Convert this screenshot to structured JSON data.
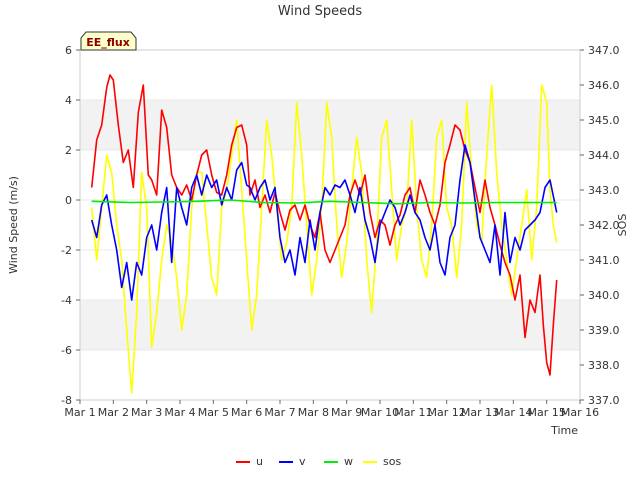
{
  "chart_data": {
    "type": "line",
    "title": "Wind Speeds",
    "badge": "EE_flux",
    "xlabel": "Time",
    "ylabel_left": "Wind Speed (m/s)",
    "ylabel_right": "SOS",
    "xlim": [
      1,
      16
    ],
    "ylim_left": [
      -8,
      6
    ],
    "ylim_right": [
      337.0,
      347.0
    ],
    "x_ticks": [
      {
        "value": 1,
        "label": "Mar 1"
      },
      {
        "value": 2,
        "label": "Mar 2"
      },
      {
        "value": 3,
        "label": "Mar 3"
      },
      {
        "value": 4,
        "label": "Mar 4"
      },
      {
        "value": 5,
        "label": "Mar 5"
      },
      {
        "value": 6,
        "label": "Mar 6"
      },
      {
        "value": 7,
        "label": "Mar 7"
      },
      {
        "value": 8,
        "label": "Mar 8"
      },
      {
        "value": 9,
        "label": "Mar 9"
      },
      {
        "value": 10,
        "label": "Mar 10"
      },
      {
        "value": 11,
        "label": "Mar 11"
      },
      {
        "value": 12,
        "label": "Mar 12"
      },
      {
        "value": 13,
        "label": "Mar 13"
      },
      {
        "value": 14,
        "label": "Mar 14"
      },
      {
        "value": 15,
        "label": "Mar 15"
      },
      {
        "value": 16,
        "label": "Mar 16"
      }
    ],
    "y_ticks_left": [
      {
        "value": -8,
        "label": "-8"
      },
      {
        "value": -6,
        "label": "-6"
      },
      {
        "value": -4,
        "label": "-4"
      },
      {
        "value": -2,
        "label": "-2"
      },
      {
        "value": 0,
        "label": "0"
      },
      {
        "value": 2,
        "label": "2"
      },
      {
        "value": 4,
        "label": "4"
      },
      {
        "value": 6,
        "label": "6"
      }
    ],
    "y_ticks_right": [
      {
        "value": 337,
        "label": "337.0"
      },
      {
        "value": 338,
        "label": "338.0"
      },
      {
        "value": 339,
        "label": "339.0"
      },
      {
        "value": 340,
        "label": "340.0"
      },
      {
        "value": 341,
        "label": "341.0"
      },
      {
        "value": 342,
        "label": "342.0"
      },
      {
        "value": 343,
        "label": "343.0"
      },
      {
        "value": 344,
        "label": "344.0"
      },
      {
        "value": 345,
        "label": "345.0"
      },
      {
        "value": 346,
        "label": "346.0"
      },
      {
        "value": 347,
        "label": "347.0"
      }
    ],
    "bands_left": [
      [
        -6,
        -4
      ],
      [
        2,
        4
      ]
    ],
    "series": [
      {
        "name": "u",
        "axis": "left",
        "color": "#ff0000",
        "x": [
          1.35,
          1.5,
          1.65,
          1.8,
          1.9,
          2.0,
          2.15,
          2.3,
          2.45,
          2.6,
          2.75,
          2.9,
          3.05,
          3.15,
          3.3,
          3.45,
          3.6,
          3.75,
          3.9,
          4.05,
          4.2,
          4.35,
          4.5,
          4.65,
          4.8,
          4.95,
          5.1,
          5.25,
          5.4,
          5.55,
          5.7,
          5.85,
          6.0,
          6.1,
          6.25,
          6.4,
          6.55,
          6.7,
          6.85,
          7.0,
          7.15,
          7.3,
          7.45,
          7.6,
          7.75,
          7.9,
          8.05,
          8.2,
          8.35,
          8.5,
          8.65,
          8.8,
          8.95,
          9.1,
          9.25,
          9.4,
          9.55,
          9.7,
          9.85,
          10.0,
          10.15,
          10.3,
          10.45,
          10.6,
          10.75,
          10.9,
          11.05,
          11.2,
          11.35,
          11.5,
          11.65,
          11.8,
          11.95,
          12.1,
          12.25,
          12.4,
          12.55,
          12.7,
          12.85,
          13.0,
          13.15,
          13.3,
          13.45,
          13.6,
          13.75,
          13.9,
          14.05,
          14.2,
          14.35,
          14.5,
          14.65,
          14.8,
          14.9,
          15.0,
          15.1,
          15.2,
          15.3
        ],
        "y": [
          0.5,
          2.4,
          3.0,
          4.5,
          5.0,
          4.8,
          3.0,
          1.5,
          2.0,
          0.5,
          3.5,
          4.6,
          1.0,
          0.8,
          0.2,
          3.6,
          2.9,
          1.0,
          0.5,
          0.2,
          0.6,
          0.0,
          1.0,
          1.8,
          2.0,
          1.0,
          0.3,
          0.2,
          1.0,
          2.2,
          2.9,
          3.0,
          2.2,
          0.2,
          0.8,
          -0.3,
          0.2,
          -0.5,
          0.3,
          -0.5,
          -1.2,
          -0.4,
          -0.2,
          -0.8,
          -0.2,
          -1.0,
          -1.5,
          -0.5,
          -2.0,
          -2.5,
          -2.0,
          -1.5,
          -1.0,
          0.2,
          0.8,
          0.2,
          1.0,
          -0.5,
          -1.5,
          -0.8,
          -1.0,
          -1.8,
          -1.0,
          -0.6,
          0.2,
          0.5,
          -0.5,
          0.8,
          0.2,
          -0.5,
          -1.0,
          -0.2,
          1.5,
          2.2,
          3.0,
          2.8,
          2.0,
          1.5,
          0.5,
          -0.5,
          0.8,
          -0.3,
          -1.0,
          -1.8,
          -2.5,
          -3.0,
          -4.0,
          -3.0,
          -5.5,
          -4.0,
          -4.5,
          -3.0,
          -5.0,
          -6.5,
          -7.0,
          -5.0,
          -3.2
        ]
      },
      {
        "name": "v",
        "axis": "left",
        "color": "#0000ff",
        "x": [
          1.35,
          1.5,
          1.65,
          1.8,
          1.95,
          2.1,
          2.25,
          2.4,
          2.55,
          2.7,
          2.85,
          3.0,
          3.15,
          3.3,
          3.45,
          3.6,
          3.75,
          3.9,
          4.05,
          4.2,
          4.35,
          4.5,
          4.65,
          4.8,
          4.95,
          5.1,
          5.25,
          5.4,
          5.55,
          5.7,
          5.85,
          6.0,
          6.1,
          6.25,
          6.4,
          6.55,
          6.7,
          6.85,
          7.0,
          7.15,
          7.3,
          7.45,
          7.6,
          7.75,
          7.9,
          8.05,
          8.2,
          8.35,
          8.5,
          8.65,
          8.8,
          8.95,
          9.1,
          9.25,
          9.4,
          9.55,
          9.7,
          9.85,
          10.0,
          10.15,
          10.3,
          10.45,
          10.6,
          10.75,
          10.9,
          11.05,
          11.2,
          11.35,
          11.5,
          11.65,
          11.8,
          11.95,
          12.1,
          12.25,
          12.4,
          12.55,
          12.7,
          12.85,
          13.0,
          13.15,
          13.3,
          13.45,
          13.6,
          13.75,
          13.9,
          14.05,
          14.2,
          14.35,
          14.5,
          14.65,
          14.8,
          14.95,
          15.1,
          15.3
        ],
        "y": [
          -0.8,
          -1.5,
          -0.2,
          0.2,
          -1.0,
          -2.0,
          -3.5,
          -2.5,
          -4.0,
          -2.5,
          -3.0,
          -1.5,
          -1.0,
          -2.0,
          -0.5,
          0.5,
          -2.5,
          0.5,
          -0.3,
          -1.0,
          0.5,
          1.0,
          0.2,
          1.0,
          0.5,
          0.8,
          -0.2,
          0.5,
          0.0,
          1.2,
          1.5,
          0.6,
          0.5,
          0.0,
          0.5,
          0.8,
          0.0,
          0.5,
          -1.5,
          -2.5,
          -2.0,
          -3.0,
          -1.5,
          -2.5,
          -0.8,
          -2.0,
          -0.5,
          0.5,
          0.2,
          0.6,
          0.5,
          0.8,
          0.2,
          -0.5,
          0.5,
          -0.8,
          -1.5,
          -2.5,
          -1.0,
          -0.5,
          0.0,
          -0.3,
          -1.0,
          -0.5,
          0.2,
          -0.5,
          -0.8,
          -1.5,
          -2.0,
          -1.0,
          -2.5,
          -3.0,
          -1.5,
          -1.0,
          0.8,
          2.2,
          1.5,
          0.0,
          -1.5,
          -2.0,
          -2.5,
          -1.0,
          -3.0,
          -0.5,
          -2.5,
          -1.5,
          -2.0,
          -1.2,
          -1.0,
          -0.8,
          -0.5,
          0.5,
          0.8,
          -0.5
        ]
      },
      {
        "name": "w",
        "axis": "left",
        "color": "#00ee00",
        "x": [
          1.35,
          2.5,
          3.5,
          4.5,
          5.5,
          6.5,
          7.5,
          8.5,
          9.5,
          10.5,
          11.5,
          12.5,
          13.5,
          14.5,
          15.3
        ],
        "y": [
          -0.05,
          -0.1,
          -0.08,
          -0.05,
          0.0,
          -0.1,
          -0.12,
          -0.05,
          -0.1,
          -0.15,
          -0.1,
          -0.12,
          -0.1,
          -0.1,
          -0.1
        ]
      },
      {
        "name": "sos",
        "axis": "right",
        "color": "#ffff00",
        "x": [
          1.35,
          1.5,
          1.65,
          1.8,
          1.95,
          2.1,
          2.25,
          2.4,
          2.55,
          2.7,
          2.85,
          3.0,
          3.15,
          3.3,
          3.45,
          3.6,
          3.75,
          3.9,
          4.05,
          4.2,
          4.35,
          4.5,
          4.65,
          4.8,
          4.95,
          5.1,
          5.25,
          5.4,
          5.55,
          5.7,
          5.85,
          6.0,
          6.15,
          6.3,
          6.45,
          6.6,
          6.75,
          6.9,
          7.05,
          7.2,
          7.35,
          7.5,
          7.65,
          7.8,
          7.95,
          8.1,
          8.25,
          8.4,
          8.55,
          8.7,
          8.85,
          9.0,
          9.15,
          9.3,
          9.45,
          9.6,
          9.75,
          9.9,
          10.05,
          10.2,
          10.35,
          10.5,
          10.65,
          10.8,
          10.95,
          11.1,
          11.25,
          11.4,
          11.55,
          11.7,
          11.85,
          12.0,
          12.15,
          12.3,
          12.45,
          12.6,
          12.75,
          12.9,
          13.05,
          13.2,
          13.35,
          13.5,
          13.65,
          13.8,
          13.95,
          14.1,
          14.25,
          14.4,
          14.55,
          14.7,
          14.85,
          15.0,
          15.1,
          15.2,
          15.3
        ],
        "y": [
          342.5,
          341.0,
          342.5,
          344.0,
          343.5,
          342.0,
          341.0,
          339.0,
          337.2,
          339.5,
          343.5,
          342.5,
          338.5,
          339.5,
          341.0,
          342.0,
          341.5,
          340.5,
          339.0,
          340.0,
          342.5,
          343.5,
          343.5,
          342.0,
          340.5,
          340.0,
          342.5,
          343.0,
          344.0,
          345.0,
          343.0,
          341.0,
          339.0,
          340.0,
          342.5,
          345.0,
          344.0,
          342.5,
          341.0,
          341.5,
          342.5,
          345.5,
          344.0,
          342.0,
          340.0,
          341.0,
          342.5,
          345.5,
          344.5,
          342.0,
          340.5,
          341.5,
          343.0,
          344.5,
          343.5,
          341.0,
          339.5,
          341.5,
          344.5,
          345.0,
          343.0,
          341.0,
          342.0,
          342.5,
          345.0,
          342.5,
          341.0,
          340.5,
          342.0,
          344.5,
          345.0,
          342.5,
          342.0,
          340.5,
          342.0,
          345.5,
          343.5,
          342.0,
          341.5,
          344.0,
          346.0,
          343.5,
          342.0,
          341.0,
          340.0,
          341.0,
          342.0,
          343.0,
          341.0,
          342.5,
          346.0,
          345.5,
          343.0,
          342.0,
          341.5
        ]
      }
    ],
    "legend_position": "bottom"
  }
}
